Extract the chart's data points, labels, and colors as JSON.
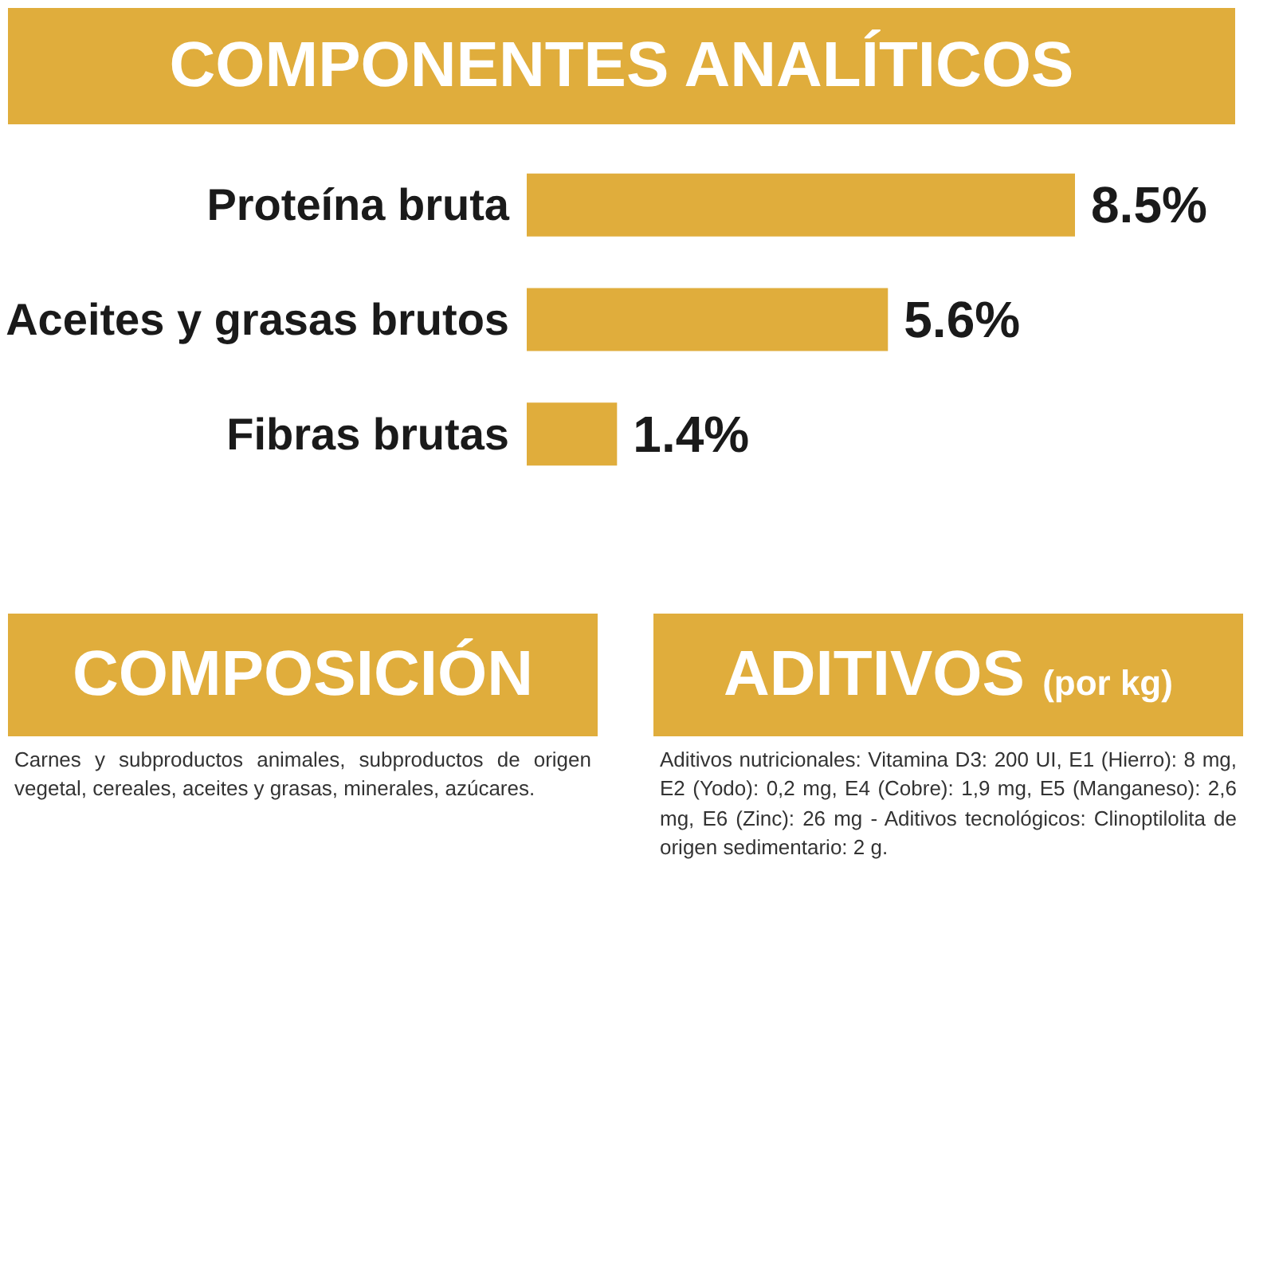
{
  "chart_data": [
    {
      "type": "bar",
      "orientation": "horizontal",
      "title": "COMPONENTES ANALÍTICOS",
      "categories": [
        "Proteína bruta",
        "Aceites y grasas brutos",
        "Fibras brutas"
      ],
      "values": [
        8.5,
        5.6,
        1.4
      ],
      "value_labels": [
        "8.5%",
        "5.6%",
        "1.4%"
      ],
      "color": "#e0ad3c",
      "tick_labels": "y",
      "grid": false
    },
    {
      "type": "other",
      "title": "COMPOSICIÓN",
      "color": "#e0ad3c",
      "annotations": [
        "Carnes y subproductos animales, subproductos de origen vegetal, cereales, aceites y grasas, minerales, azúcares."
      ]
    },
    {
      "type": "other",
      "title": "ADITIVOS",
      "subtitle": "(por kg)",
      "color": "#e0ad3c",
      "annotations": [
        "Aditivos nutricionales: Vitamina D3: 200 UI, E1 (Hierro): 8 mg, E2 (Yodo): 0,2 mg, E4 (Cobre): 1,9 mg, E5 (Manganeso): 2,6 mg, E6 (Zinc): 26 mg - Aditivos tecnológicos: Clinoptilolita de origen sedimentario: 2 g."
      ]
    }
  ]
}
